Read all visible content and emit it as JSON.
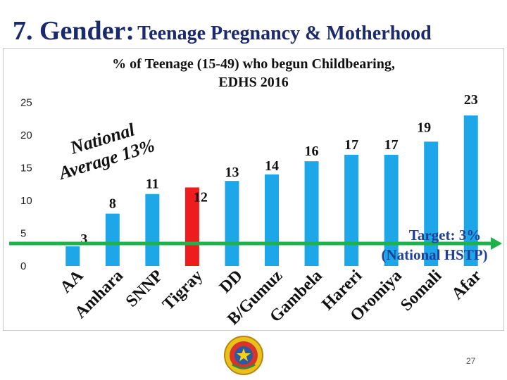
{
  "slide": {
    "title_main": "7. Gender:",
    "title_sub": "Teenage Pregnancy & Motherhood",
    "page_number": "27"
  },
  "chart_data": {
    "type": "bar",
    "title": "% of Teenage (15-49) who begun Childbearing, EDHS 2016",
    "title_lines": [
      "% of Teenage (15-49) who begun Childbearing,",
      "EDHS 2016"
    ],
    "categories": [
      "AA",
      "Amhara",
      "SNNP",
      "Tigray",
      "DD",
      "B/Gumuz",
      "Gambela",
      "Hareri",
      "Oromiya",
      "Somali",
      "Afar"
    ],
    "values": [
      3,
      8,
      11,
      12,
      13,
      14,
      16,
      17,
      17,
      19,
      23
    ],
    "value_labels": [
      "3",
      "8",
      "11",
      "12",
      "13",
      "14",
      "16",
      "17",
      "17",
      "19",
      "23"
    ],
    "highlight_category": "Tigray",
    "ylim": [
      0,
      25
    ],
    "yticks": [
      "0",
      "5",
      "10",
      "15",
      "20",
      "25"
    ],
    "xlabel": "",
    "ylabel": "",
    "grid": false,
    "colors": {
      "bar": "#1ea7e8",
      "highlight": "#ee1c1c",
      "target_line": "#1db34a",
      "average_line": "#2b5fb4"
    },
    "reference_lines": [
      {
        "name": "National Average 13%",
        "value": 13
      },
      {
        "name": "Target: 3% (National HSTP)",
        "value": 3
      }
    ],
    "annotations": {
      "national_average": [
        "National",
        "Average 13%"
      ],
      "target": [
        "Target: 3%",
        "(National HSTP)"
      ]
    }
  },
  "logo": {
    "icon": "government-seal-icon"
  }
}
